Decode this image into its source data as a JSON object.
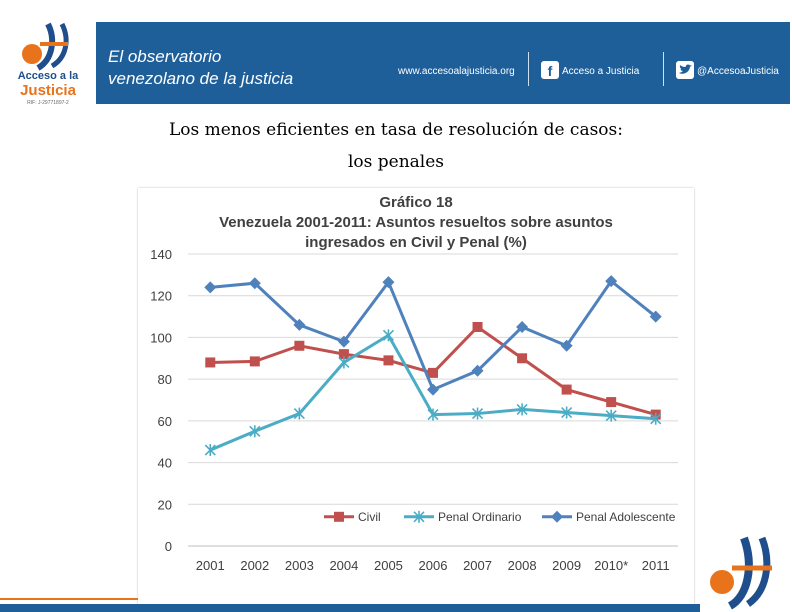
{
  "logo": {
    "line1": "Acceso a la",
    "line2": "Justicia",
    "line3": "RIF: J-29771897-2"
  },
  "banner": {
    "title_line1": "El observatorio",
    "title_line2": "venezolano de la justicia",
    "website": "www.accesoalajusticia.org",
    "facebook_label": "Acceso a Justicia",
    "twitter_label": "@AccesoaJusticia",
    "color": "#1f5f99"
  },
  "heading": {
    "line1": "Los menos eficientes en tasa de resolución de casos:",
    "line2": "los penales"
  },
  "chart_data": {
    "type": "line",
    "title": "Gráfico 18",
    "subtitle_line1": "Venezuela 2001-2011: Asuntos resueltos sobre asuntos",
    "subtitle_line2": "ingresados en Civil y Penal (%)",
    "categories": [
      "2001",
      "2002",
      "2003",
      "2004",
      "2005",
      "2006",
      "2007",
      "2008",
      "2009",
      "2010*",
      "2011"
    ],
    "ylim": [
      0,
      140
    ],
    "yticks": [
      "0",
      "20",
      "40",
      "60",
      "80",
      "100",
      "120",
      "140"
    ],
    "grid": true,
    "legend_position": "bottom-right",
    "series": [
      {
        "name": "Civil",
        "color": "#c0504d",
        "marker": "square",
        "values": [
          88,
          88.5,
          96,
          92,
          89,
          83,
          105,
          90,
          75,
          69,
          63
        ]
      },
      {
        "name": "Penal Ordinario",
        "color": "#4bacc6",
        "marker": "star",
        "values": [
          46,
          55,
          63.5,
          88,
          101,
          63,
          63.5,
          65.5,
          64,
          62.5,
          61
        ]
      },
      {
        "name": "Penal Adolescente",
        "color": "#4f81bd",
        "marker": "diamond",
        "values": [
          124,
          126,
          106,
          98,
          126.5,
          75,
          84,
          105,
          96,
          127,
          110
        ]
      }
    ]
  }
}
